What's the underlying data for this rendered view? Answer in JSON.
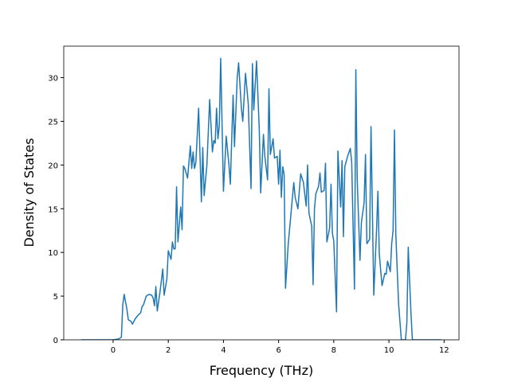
{
  "chart_data": {
    "type": "line",
    "xlabel": "Frequency (THz)",
    "ylabel": "Density of States",
    "xlim": [
      -1.79,
      12.54
    ],
    "ylim": [
      0,
      33.6
    ],
    "xticks": [
      0,
      2,
      4,
      6,
      8,
      10,
      12
    ],
    "yticks": [
      0,
      5,
      10,
      15,
      20,
      25,
      30
    ],
    "series": [
      {
        "color": "#1f77b4",
        "x": [
          -1.15,
          0,
          0.2,
          0.3,
          0.35,
          0.4,
          0.5,
          0.55,
          0.65,
          0.7,
          0.8,
          0.9,
          1.0,
          1.05,
          1.1,
          1.2,
          1.3,
          1.4,
          1.45,
          1.5,
          1.55,
          1.6,
          1.7,
          1.8,
          1.85,
          1.95,
          2.0,
          2.1,
          2.15,
          2.2,
          2.25,
          2.3,
          2.35,
          2.45,
          2.5,
          2.55,
          2.6,
          2.7,
          2.8,
          2.85,
          2.9,
          2.95,
          3.0,
          3.1,
          3.2,
          3.25,
          3.3,
          3.4,
          3.5,
          3.6,
          3.65,
          3.7,
          3.75,
          3.8,
          3.85,
          3.9,
          4.0,
          4.1,
          4.2,
          4.25,
          4.35,
          4.4,
          4.5,
          4.55,
          4.65,
          4.7,
          4.8,
          4.9,
          5.0,
          5.05,
          5.1,
          5.2,
          5.3,
          5.35,
          5.45,
          5.5,
          5.6,
          5.65,
          5.7,
          5.8,
          5.85,
          5.95,
          6.0,
          6.05,
          6.1,
          6.15,
          6.2,
          6.25,
          6.35,
          6.45,
          6.55,
          6.6,
          6.7,
          6.8,
          6.9,
          7.0,
          7.05,
          7.1,
          7.2,
          7.25,
          7.3,
          7.35,
          7.45,
          7.5,
          7.55,
          7.65,
          7.7,
          7.75,
          7.85,
          7.9,
          7.95,
          8.0,
          8.1,
          8.15,
          8.25,
          8.3,
          8.35,
          8.4,
          8.5,
          8.6,
          8.65,
          8.75,
          8.8,
          8.85,
          8.95,
          9.0,
          9.1,
          9.15,
          9.2,
          9.3,
          9.35,
          9.45,
          9.55,
          9.6,
          9.65,
          9.75,
          9.85,
          9.9,
          9.95,
          10.05,
          10.1,
          10.15,
          10.2,
          10.25,
          10.35,
          10.45,
          10.6,
          10.65,
          10.7,
          10.75,
          10.8,
          10.85,
          11.9
        ],
        "values": [
          0,
          0,
          0.1,
          0.3,
          4,
          5.2,
          3.5,
          2.3,
          2.1,
          1.8,
          2.4,
          2.8,
          3.1,
          3.8,
          4,
          5,
          5.2,
          5.1,
          4.8,
          3.9,
          6.1,
          3.3,
          5.5,
          8.1,
          5.1,
          7,
          10.2,
          9.2,
          11.2,
          10.4,
          10.4,
          17.5,
          11.2,
          15.2,
          12.6,
          19.9,
          19.6,
          18.5,
          22.2,
          19.6,
          21.5,
          19.6,
          20.3,
          26.5,
          15.8,
          22,
          16.5,
          20,
          27.5,
          21.5,
          22.8,
          22.5,
          26.5,
          23,
          24.5,
          32.2,
          17,
          23.3,
          20,
          17.8,
          28,
          22.1,
          30,
          31.7,
          26.5,
          25,
          30.5,
          27,
          17.3,
          31.6,
          26.3,
          31.9,
          24,
          16.8,
          23.5,
          21,
          18.3,
          28.7,
          21.2,
          23,
          20.8,
          21,
          17.8,
          21.7,
          16.3,
          19.8,
          18.9,
          5.9,
          11,
          14.5,
          18,
          16.3,
          15,
          19,
          18,
          15.3,
          20,
          14.5,
          13,
          6.3,
          15,
          16.7,
          17.6,
          19.1,
          16.9,
          17.1,
          20.2,
          11.2,
          12.8,
          17.8,
          12.2,
          11.3,
          3.2,
          21.6,
          15.2,
          20.5,
          11.8,
          19.8,
          21,
          21.9,
          20.3,
          5.8,
          30.9,
          18.3,
          9.1,
          13.4,
          15.7,
          21.2,
          11,
          11.5,
          24.4,
          5.1,
          12.5,
          17,
          9.8,
          6.2,
          7.6,
          7.5,
          9,
          7.8,
          11,
          12.5,
          24,
          12,
          4.1,
          0,
          0,
          2,
          10.6,
          6.7,
          3,
          0,
          0
        ]
      }
    ]
  }
}
